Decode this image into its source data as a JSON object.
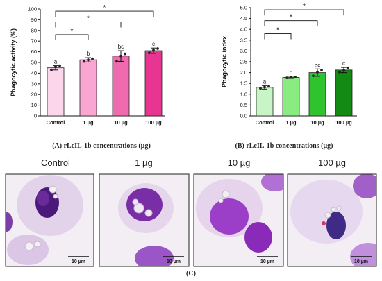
{
  "chart_data": [
    {
      "type": "bar",
      "panel": "A",
      "ylabel": "Phagocytic activity (%)",
      "ylim": [
        0,
        100
      ],
      "yticks": [
        0,
        10,
        20,
        30,
        40,
        50,
        60,
        70,
        80,
        90,
        100
      ],
      "categories": [
        "Control",
        "1 µg",
        "10 µg",
        "100 µg"
      ],
      "values": [
        45,
        52.5,
        56,
        61
      ],
      "errors": [
        2,
        2,
        5,
        2.5
      ],
      "points": [
        [
          43,
          46,
          47
        ],
        [
          51,
          52.5,
          53.5
        ],
        [
          51,
          56,
          58
        ],
        [
          59,
          61.5,
          63
        ]
      ],
      "letters": [
        "a",
        "b",
        "bc",
        "c"
      ],
      "colors": [
        "#fcd6ea",
        "#f9a6d3",
        "#f06ab0",
        "#e83591"
      ],
      "significance": [
        {
          "from": 0,
          "to": 1,
          "label": "*"
        },
        {
          "from": 0,
          "to": 2,
          "label": "*"
        },
        {
          "from": 0,
          "to": 3,
          "label": "*"
        }
      ],
      "caption": "(A) rLcIL-1b concentrations (µg)"
    },
    {
      "type": "bar",
      "panel": "B",
      "ylabel": "Phagocytic index",
      "ylim": [
        0,
        5
      ],
      "yticks": [
        0.0,
        0.5,
        1.0,
        1.5,
        2.0,
        2.5,
        3.0,
        3.5,
        4.0,
        4.5,
        5.0
      ],
      "categories": [
        "Control",
        "1 µg",
        "10 µg",
        "100 µg"
      ],
      "values": [
        1.32,
        1.78,
        2.0,
        2.12
      ],
      "errors": [
        0.08,
        0.05,
        0.17,
        0.12
      ],
      "points": [
        [
          1.27,
          1.33,
          1.37
        ],
        [
          1.76,
          1.79,
          1.8
        ],
        [
          1.85,
          2.02,
          2.12
        ],
        [
          2.02,
          2.12,
          2.22
        ]
      ],
      "letters": [
        "a",
        "b",
        "bc",
        "c"
      ],
      "colors": [
        "#c9f5c6",
        "#88ec80",
        "#2fc42f",
        "#138a13"
      ],
      "significance": [
        {
          "from": 0,
          "to": 1,
          "label": "*"
        },
        {
          "from": 0,
          "to": 2,
          "label": "*"
        },
        {
          "from": 0,
          "to": 3,
          "label": "*"
        }
      ],
      "caption": "(B) rLcIL-1b concentrations (µg)"
    }
  ],
  "micrographs": {
    "labels": [
      "Control",
      "1 µg",
      "10 µg",
      "100 µg"
    ],
    "scale_bar": "10 µm",
    "caption": "(C)"
  }
}
